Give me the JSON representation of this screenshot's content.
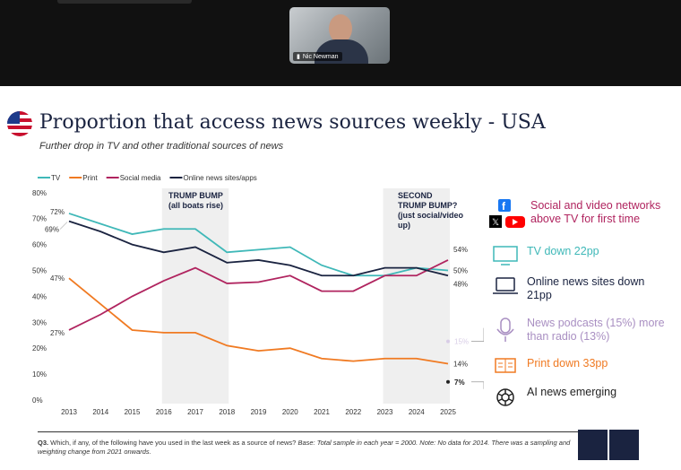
{
  "meeting": {
    "participant_name": "Nic Newman"
  },
  "slide": {
    "title": "Proportion that access news sources weekly - USA",
    "subtitle": "Further drop in TV and other traditional sources of news",
    "annotations": {
      "bump1": "TRUMP BUMP\n(all boats rise)",
      "bump2": "SECOND\nTRUMP BUMP?\n(just social/video\nup)"
    },
    "right_panel": [
      {
        "icon": "facebook-x-youtube-icon",
        "text": "Social and video networks above TV for first time",
        "color": "#b0245f"
      },
      {
        "icon": "tv-icon",
        "text": "TV down 22pp",
        "color": "#3fb8b8"
      },
      {
        "icon": "laptop-icon",
        "text": "Online news sites down 21pp",
        "color": "#1a2340"
      },
      {
        "icon": "microphone-icon",
        "text": "News podcasts (15%) more than radio (13%)",
        "color": "#a98fc2"
      },
      {
        "icon": "newspaper-icon",
        "text": "Print down 33pp",
        "color": "#f07a22"
      },
      {
        "icon": "openai-icon",
        "text": "AI news emerging",
        "color": "#222222"
      }
    ],
    "footer": {
      "q": "Q3.",
      "text": " Which, if any, of the following have you used in the last week as a source of news? ",
      "italic": "Base: Total sample in each year = 2000. Note: No data for 2014. There was a sampling and weighting change from 2021 onwards."
    },
    "logos": [
      "REUTERS INSTITUTE",
      "UNIVERSITY OF OXFORD"
    ]
  },
  "chart_data": {
    "type": "line",
    "x": [
      2013,
      2014,
      2015,
      2016,
      2017,
      2018,
      2019,
      2020,
      2021,
      2022,
      2023,
      2024,
      2025
    ],
    "ylim": [
      0,
      80
    ],
    "yticks": [
      "0%",
      "10%",
      "20%",
      "30%",
      "40%",
      "50%",
      "60%",
      "70%",
      "80%"
    ],
    "legend_position": "top-left",
    "series": [
      {
        "name": "TV",
        "color": "#3fb8b8",
        "values": [
          72,
          68,
          64,
          66,
          66,
          57,
          58,
          59,
          52,
          48,
          48,
          51,
          50
        ],
        "start_label": "72%",
        "end_label": "50%"
      },
      {
        "name": "Print",
        "color": "#f07a22",
        "values": [
          47,
          37,
          27,
          26,
          26,
          21,
          19,
          20,
          16,
          15,
          16,
          16,
          14
        ],
        "start_label": "47%",
        "end_label": "14%"
      },
      {
        "name": "Social media",
        "color": "#b0245f",
        "values": [
          27,
          33,
          40,
          46,
          51,
          45,
          45.5,
          48,
          42,
          42,
          48,
          48,
          54
        ],
        "start_label": "27%",
        "end_label": "54%"
      },
      {
        "name": "Online news sites/apps",
        "color": "#1a2340",
        "values": [
          69,
          65,
          60,
          57,
          59,
          53,
          54,
          52,
          48,
          48,
          51,
          51,
          48
        ],
        "start_label": "69%",
        "end_label": "48%"
      }
    ],
    "points": [
      {
        "label": "15%",
        "value": 15,
        "year": 2025,
        "color": "#d8cde6"
      },
      {
        "label": "7%",
        "value": 7,
        "year": 2025,
        "color": "#222222"
      }
    ],
    "shaded_ranges": [
      [
        2016,
        2018
      ],
      [
        2023,
        2025
      ]
    ]
  }
}
